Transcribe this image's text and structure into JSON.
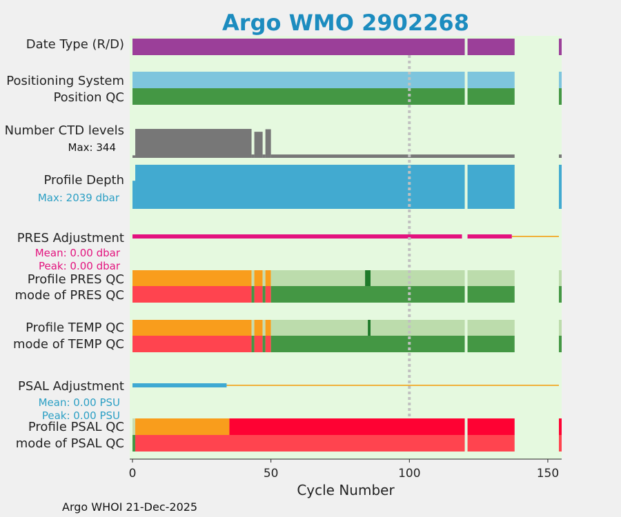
{
  "chart_data": {
    "type": "timeline",
    "title": "Argo WMO 2902268",
    "xlabel": "Cycle Number",
    "xlim": [
      -1,
      155
    ],
    "xticks": [
      0,
      50,
      100,
      150
    ],
    "reference_line_x": 100,
    "footer": "Argo WHOI 21-Dec-2025",
    "rows": [
      {
        "id": "date-type",
        "label": "Date Type (R/D)",
        "label_color": "#222222",
        "segments": [
          {
            "from": 0,
            "to": 120,
            "color": "#9b3f99"
          },
          {
            "from": 121,
            "to": 138,
            "color": "#9b3f99"
          },
          {
            "from": 154,
            "to": 155,
            "color": "#9b3f99"
          }
        ]
      },
      {
        "id": "positioning-system",
        "label": "Positioning System",
        "label_color": "#222222",
        "segments": [
          {
            "from": 0,
            "to": 120,
            "color": "#7ec5dd"
          },
          {
            "from": 121,
            "to": 138,
            "color": "#7ec5dd"
          },
          {
            "from": 154,
            "to": 155,
            "color": "#7ec5dd"
          }
        ]
      },
      {
        "id": "position-qc",
        "label": "Position QC",
        "label_color": "#222222",
        "segments": [
          {
            "from": 0,
            "to": 120,
            "color": "#449744"
          },
          {
            "from": 121,
            "to": 138,
            "color": "#449744"
          },
          {
            "from": 154,
            "to": 155,
            "color": "#449744"
          }
        ]
      },
      {
        "id": "ctd-levels",
        "label": "Number CTD levels",
        "label_color": "#222222",
        "sublabel": "Max: 344",
        "sublabel_color": "#111111",
        "max": 344,
        "levels": [
          {
            "from": 0,
            "to": 1,
            "value": 30
          },
          {
            "from": 1,
            "to": 43,
            "value": 344
          },
          {
            "from": 43,
            "to": 44,
            "value": 40
          },
          {
            "from": 44,
            "to": 47,
            "value": 310
          },
          {
            "from": 47,
            "to": 48,
            "value": 40
          },
          {
            "from": 48,
            "to": 50,
            "value": 340
          },
          {
            "from": 50,
            "to": 138,
            "value": 40
          },
          {
            "from": 154,
            "to": 155,
            "value": 40
          }
        ]
      },
      {
        "id": "profile-depth",
        "label": "Profile Depth",
        "label_color": "#222222",
        "sublabel": "Max: 2039 dbar",
        "sublabel_color": "#2b9fc4",
        "max": 2039,
        "levels": [
          {
            "from": 0,
            "to": 1,
            "value": 1300
          },
          {
            "from": 1,
            "to": 120,
            "value": 2039
          },
          {
            "from": 121,
            "to": 138,
            "value": 2039
          },
          {
            "from": 154,
            "to": 155,
            "value": 2039
          }
        ]
      },
      {
        "id": "pres-adjustment",
        "label": "PRES Adjustment",
        "label_color": "#222222",
        "sublabels": [
          "Mean: 0.00 dbar",
          "Peak: 0.00 dbar"
        ],
        "sublabel_color": "#e3137e",
        "thick": [
          {
            "from": 0,
            "to": 119,
            "color": "#e3137e"
          },
          {
            "from": 121,
            "to": 137,
            "color": "#e3137e"
          }
        ],
        "thin": [
          {
            "from": 137,
            "to": 154,
            "color": "#f0b038"
          }
        ]
      },
      {
        "id": "profile-pres-qc",
        "label": "Profile PRES QC",
        "label_color": "#222222",
        "segments": [
          {
            "from": 0,
            "to": 43,
            "color": "#f99d1c"
          },
          {
            "from": 43,
            "to": 44,
            "color": "#c8dcae"
          },
          {
            "from": 44,
            "to": 47,
            "color": "#f99d1c"
          },
          {
            "from": 47,
            "to": 48,
            "color": "#c8dcae"
          },
          {
            "from": 48,
            "to": 50,
            "color": "#f99d1c"
          },
          {
            "from": 50,
            "to": 84,
            "color": "#bcdcac"
          },
          {
            "from": 84,
            "to": 86,
            "color": "#1f7a2a"
          },
          {
            "from": 86,
            "to": 120,
            "color": "#bcdcac"
          },
          {
            "from": 121,
            "to": 138,
            "color": "#bcdcac"
          },
          {
            "from": 154,
            "to": 155,
            "color": "#bcdcac"
          }
        ]
      },
      {
        "id": "mode-pres-qc",
        "label": "mode of PRES QC",
        "label_color": "#222222",
        "segments": [
          {
            "from": 0,
            "to": 43,
            "color": "#ff444f"
          },
          {
            "from": 43,
            "to": 44,
            "color": "#449744"
          },
          {
            "from": 44,
            "to": 47,
            "color": "#ff444f"
          },
          {
            "from": 47,
            "to": 48,
            "color": "#449744"
          },
          {
            "from": 48,
            "to": 50,
            "color": "#ff444f"
          },
          {
            "from": 50,
            "to": 120,
            "color": "#449744"
          },
          {
            "from": 121,
            "to": 138,
            "color": "#449744"
          },
          {
            "from": 154,
            "to": 155,
            "color": "#449744"
          }
        ]
      },
      {
        "id": "profile-temp-qc",
        "label": "Profile TEMP QC",
        "label_color": "#222222",
        "segments": [
          {
            "from": 0,
            "to": 43,
            "color": "#f99d1c"
          },
          {
            "from": 43,
            "to": 44,
            "color": "#c8dcae"
          },
          {
            "from": 44,
            "to": 47,
            "color": "#f99d1c"
          },
          {
            "from": 47,
            "to": 48,
            "color": "#c8dcae"
          },
          {
            "from": 48,
            "to": 50,
            "color": "#f99d1c"
          },
          {
            "from": 50,
            "to": 85,
            "color": "#bcdcac"
          },
          {
            "from": 85,
            "to": 86,
            "color": "#1f7a2a"
          },
          {
            "from": 86,
            "to": 120,
            "color": "#bcdcac"
          },
          {
            "from": 121,
            "to": 138,
            "color": "#bcdcac"
          },
          {
            "from": 154,
            "to": 155,
            "color": "#bcdcac"
          }
        ]
      },
      {
        "id": "mode-temp-qc",
        "label": "mode of TEMP QC",
        "label_color": "#222222",
        "segments": [
          {
            "from": 0,
            "to": 43,
            "color": "#ff444f"
          },
          {
            "from": 43,
            "to": 44,
            "color": "#449744"
          },
          {
            "from": 44,
            "to": 47,
            "color": "#ff444f"
          },
          {
            "from": 47,
            "to": 48,
            "color": "#449744"
          },
          {
            "from": 48,
            "to": 50,
            "color": "#ff444f"
          },
          {
            "from": 50,
            "to": 120,
            "color": "#449744"
          },
          {
            "from": 121,
            "to": 138,
            "color": "#449744"
          },
          {
            "from": 154,
            "to": 155,
            "color": "#449744"
          }
        ]
      },
      {
        "id": "psal-adjustment",
        "label": "PSAL Adjustment",
        "label_color": "#222222",
        "sublabels": [
          "Mean: 0.00 PSU",
          "Peak: 0.00 PSU"
        ],
        "sublabel_color": "#2b9fc4",
        "thick": [
          {
            "from": 0,
            "to": 34,
            "color": "#3ea9d2"
          }
        ],
        "thin": [
          {
            "from": 34,
            "to": 154,
            "color": "#f0b038"
          }
        ]
      },
      {
        "id": "profile-psal-qc",
        "label": "Profile PSAL QC",
        "label_color": "#222222",
        "segments": [
          {
            "from": 0,
            "to": 1,
            "color": "#c8dcae"
          },
          {
            "from": 1,
            "to": 35,
            "color": "#f99d1c"
          },
          {
            "from": 35,
            "to": 120,
            "color": "#fe0233"
          },
          {
            "from": 121,
            "to": 138,
            "color": "#fe0233"
          },
          {
            "from": 154,
            "to": 155,
            "color": "#fe0233"
          }
        ]
      },
      {
        "id": "mode-psal-qc",
        "label": "mode of PSAL QC",
        "label_color": "#222222",
        "segments": [
          {
            "from": 0,
            "to": 1,
            "color": "#449744"
          },
          {
            "from": 1,
            "to": 120,
            "color": "#ff444f"
          },
          {
            "from": 121,
            "to": 138,
            "color": "#ff444f"
          },
          {
            "from": 154,
            "to": 155,
            "color": "#ff444f"
          }
        ]
      }
    ]
  }
}
